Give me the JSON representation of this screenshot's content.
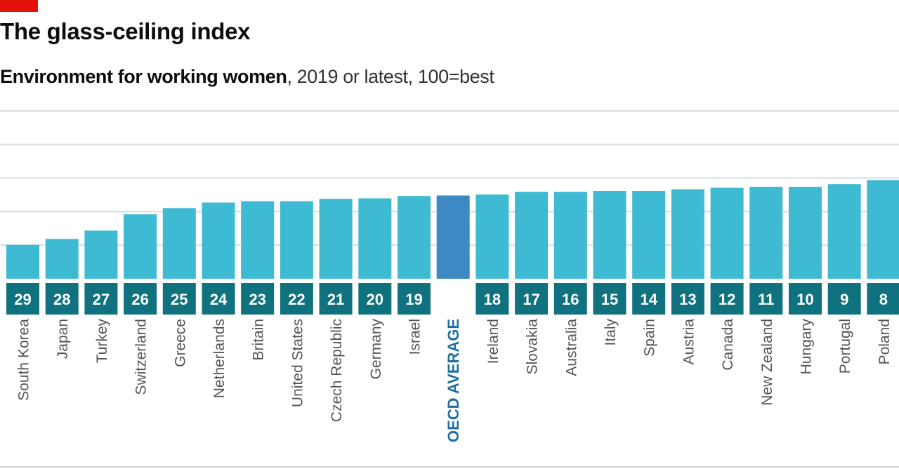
{
  "header": {
    "title": "The glass-ceiling index",
    "subtitle_bold": "Environment for working women",
    "subtitle_rest": ", 2019 or latest, 100=best"
  },
  "colors": {
    "bar": "#3ebbd2",
    "highlight_bar": "#3d89c3",
    "rank_box": "#10727f",
    "highlight_label": "#1f6fa3",
    "label": "#555555",
    "grid": "#d7dde2",
    "brand_red": "#e3120b"
  },
  "chart_data": {
    "type": "bar",
    "title": "The glass-ceiling index",
    "subtitle": "Environment for working women, 2019 or latest, 100=best",
    "categories": [
      "South Korea",
      "Japan",
      "Turkey",
      "Switzerland",
      "Greece",
      "Netherlands",
      "Britain",
      "United States",
      "Czech Republic",
      "Germany",
      "Israel",
      "OECD AVERAGE",
      "Ireland",
      "Slovakia",
      "Australia",
      "Italy",
      "Spain",
      "Austria",
      "Canada",
      "New Zealand",
      "Hungary",
      "Portugal",
      "Poland"
    ],
    "ranks": [
      "29",
      "28",
      "27",
      "26",
      "25",
      "24",
      "23",
      "22",
      "21",
      "20",
      "19",
      "",
      "18",
      "17",
      "16",
      "15",
      "14",
      "13",
      "12",
      "11",
      "10",
      "9",
      "8"
    ],
    "values": [
      20.2,
      23.7,
      28.7,
      38.4,
      42.1,
      45.4,
      46.2,
      46.2,
      47.6,
      47.9,
      49.3,
      49.6,
      50.2,
      51.8,
      51.8,
      52.3,
      52.3,
      53.3,
      54.2,
      54.8,
      54.8,
      56.4,
      58.8
    ],
    "highlight": "OECD AVERAGE",
    "ylim": [
      0,
      100
    ],
    "gridlines": [
      20,
      40,
      60,
      80,
      100
    ],
    "xlabel": "",
    "ylabel": ""
  }
}
